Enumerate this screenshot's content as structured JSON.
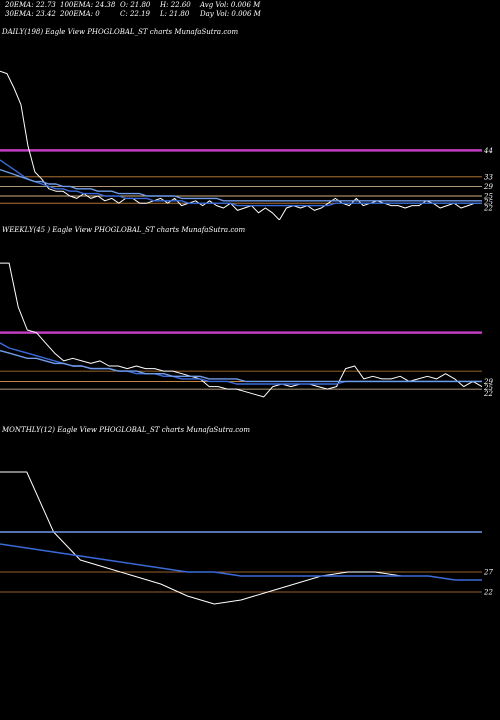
{
  "header": {
    "ema20": "20EMA: 22.73",
    "ema100": "100EMA: 24.38",
    "open": "O: 21.80",
    "high": "H: 22.60",
    "avg_vol": "Avg Vol: 0.006  M",
    "ema30": "30EMA: 23.42",
    "ema200": "200EMA: 0",
    "close": "C: 22.19",
    "low": "L: 21.80",
    "day_vol": "Day Vol: 0.006  M"
  },
  "colors": {
    "background": "#000000",
    "price": "#ffffff",
    "ema_blue": "#3a6ad8",
    "ema_light_blue": "#6f9be8",
    "resistance": "#c03cc0",
    "level_orange": "#c8823a",
    "level_pale": "#e6c8a0"
  },
  "chart_data": [
    {
      "type": "line",
      "title": "DAILY(198) Eagle   View  PHOGLOBAL_ST charts MunafaSutra.com",
      "y_tick_labels": [
        "44",
        "33",
        "29",
        "25",
        "25",
        "22"
      ],
      "level_values": [
        44,
        33,
        29,
        25,
        25,
        22
      ],
      "level_colors": [
        "#c03cc0",
        "#c8823a",
        "#e6c8a0",
        "#c8823a",
        "#e6c8a0",
        "#c8823a"
      ],
      "ylim": [
        15,
        90
      ],
      "series": [
        {
          "color": "#ffffff",
          "values": [
            77,
            76,
            70,
            63,
            46,
            35,
            32,
            28,
            27,
            27,
            25,
            24,
            26,
            24,
            25,
            23,
            24,
            22,
            24,
            24,
            22,
            22,
            23,
            24,
            22,
            24,
            21,
            22,
            23,
            21,
            23,
            21,
            20,
            22,
            19,
            20,
            21,
            18,
            20,
            18,
            15,
            20,
            21,
            20,
            21,
            19,
            20,
            22,
            24,
            22,
            21,
            24,
            21,
            22,
            23,
            22,
            21,
            21,
            20,
            21,
            21,
            23,
            22,
            20,
            21,
            22,
            20,
            21,
            22,
            22
          ]
        },
        {
          "color": "#3a6ad8",
          "values": [
            40,
            38,
            36,
            34,
            32,
            31,
            30,
            29,
            28,
            28,
            27,
            27,
            26,
            26,
            26,
            25,
            25,
            25,
            24,
            24,
            24,
            24,
            23,
            23,
            23,
            23,
            23,
            22,
            22,
            22,
            22,
            22,
            22,
            22,
            21,
            21,
            21,
            21,
            21,
            21,
            21,
            21,
            21,
            21,
            21,
            21,
            21,
            21,
            22,
            22,
            22,
            22,
            22,
            22,
            22,
            22,
            22,
            22,
            22,
            22,
            22,
            22,
            22,
            22,
            22,
            22,
            22,
            22,
            22,
            22
          ]
        },
        {
          "color": "#6f9be8",
          "values": [
            36,
            35,
            34,
            33,
            32,
            31,
            31,
            30,
            30,
            29,
            29,
            28,
            28,
            28,
            27,
            27,
            27,
            26,
            26,
            26,
            26,
            25,
            25,
            25,
            25,
            25,
            24,
            24,
            24,
            24,
            24,
            24,
            23,
            23,
            23,
            23,
            23,
            23,
            23,
            23,
            23,
            23,
            23,
            23,
            23,
            23,
            23,
            23,
            23,
            23,
            23,
            23,
            23,
            23,
            23,
            23,
            23,
            23,
            23,
            23,
            23,
            23,
            23,
            23,
            23,
            23,
            23,
            23,
            23,
            23
          ]
        }
      ]
    },
    {
      "type": "line",
      "title": "WEEKLY(45                          ) Eagle   View  PHOGLOBAL_ST charts MunafaSutra.com",
      "y_tick_labels": [
        "29",
        "25",
        "22"
      ],
      "level_values": [
        44,
        29,
        25,
        25,
        22
      ],
      "level_colors": [
        "#c03cc0",
        "#c8823a",
        "#e6c8a0",
        "#c8823a",
        "#e6c8a0"
      ],
      "ylim": [
        10,
        80
      ],
      "series": [
        {
          "color": "#ffffff",
          "values": [
            71,
            71,
            54,
            45,
            44,
            40,
            36,
            33,
            34,
            33,
            32,
            33,
            31,
            31,
            30,
            31,
            30,
            30,
            29,
            29,
            28,
            27,
            26,
            23,
            23,
            22,
            22,
            21,
            20,
            19,
            23,
            24,
            23,
            24,
            24,
            23,
            22,
            23,
            30,
            31,
            26,
            27,
            26,
            26,
            27,
            25,
            26,
            27,
            26,
            28,
            26,
            23,
            25,
            23
          ]
        },
        {
          "color": "#3a6ad8",
          "values": [
            40,
            38,
            37,
            36,
            35,
            34,
            33,
            32,
            31,
            31,
            30,
            30,
            30,
            29,
            29,
            28,
            28,
            28,
            27,
            27,
            26,
            26,
            26,
            25,
            25,
            25,
            24,
            24,
            24,
            24,
            24,
            24,
            24,
            24,
            24,
            24,
            24,
            24,
            25,
            25,
            25,
            25,
            25,
            25,
            25,
            25,
            25,
            25,
            25,
            25,
            25,
            25,
            25,
            25
          ]
        },
        {
          "color": "#6f9be8",
          "values": [
            37,
            36,
            35,
            34,
            34,
            33,
            32,
            32,
            31,
            31,
            30,
            30,
            30,
            29,
            29,
            29,
            28,
            28,
            28,
            27,
            27,
            27,
            27,
            26,
            26,
            26,
            26,
            25,
            25,
            25,
            25,
            25,
            25,
            25,
            25,
            25,
            25,
            25,
            25,
            25,
            25,
            25,
            25,
            25,
            25,
            25,
            25,
            25,
            25,
            25,
            25,
            25,
            25,
            25
          ]
        }
      ]
    },
    {
      "type": "line",
      "title": "MONTHLY(12) Eagle   View  PHOGLOBAL_ST charts MunafaSutra.com",
      "y_tick_labels": [
        "27",
        "22"
      ],
      "level_values": [
        27,
        22
      ],
      "level_colors": [
        "#c8823a",
        "#c8823a"
      ],
      "ylim": [
        15,
        60
      ],
      "series": [
        {
          "color": "#ffffff",
          "values": [
            52,
            52,
            37,
            30,
            28,
            26,
            24,
            21,
            19,
            20,
            22,
            24,
            26,
            27,
            27,
            26,
            26,
            25,
            25
          ]
        },
        {
          "color": "#6f9be8",
          "values": [
            37,
            37,
            37,
            37,
            37,
            37,
            37,
            37,
            37,
            37,
            37,
            37,
            37,
            37,
            37,
            37,
            37,
            37,
            37
          ]
        },
        {
          "color": "#3a6ad8",
          "values": [
            34,
            33,
            32,
            31,
            30,
            29,
            28,
            27,
            27,
            26,
            26,
            26,
            26,
            26,
            26,
            26,
            26,
            25,
            25
          ]
        }
      ]
    }
  ]
}
